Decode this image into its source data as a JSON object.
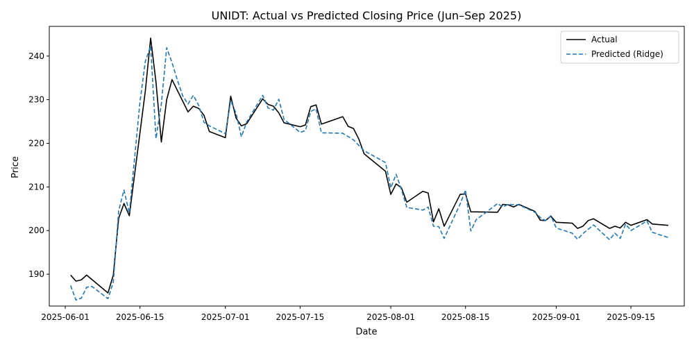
{
  "chart_data": {
    "type": "line",
    "title": "UNIDT: Actual vs Predicted Closing Price (Jun–Sep 2025)",
    "xlabel": "Date",
    "ylabel": "Price",
    "xlim": [
      "2025-05-29",
      "2025-09-25"
    ],
    "ylim": [
      182.7,
      246.8
    ],
    "xticks": [
      "2025-06-01",
      "2025-06-15",
      "2025-07-01",
      "2025-07-15",
      "2025-08-01",
      "2025-08-15",
      "2025-09-01",
      "2025-09-15"
    ],
    "yticks": [
      190,
      200,
      210,
      220,
      230,
      240
    ],
    "legend_position": "upper right",
    "grid": false,
    "series": [
      {
        "name": "Actual",
        "color": "#000000",
        "style": "solid",
        "points": [
          [
            "2025-06-02",
            189.8
          ],
          [
            "2025-06-03",
            188.4
          ],
          [
            "2025-06-04",
            188.7
          ],
          [
            "2025-06-05",
            189.8
          ],
          [
            "2025-06-09",
            185.7
          ],
          [
            "2025-06-10",
            189.8
          ],
          [
            "2025-06-11",
            202.8
          ],
          [
            "2025-06-12",
            206.2
          ],
          [
            "2025-06-13",
            203.4
          ],
          [
            "2025-06-16",
            232.0
          ],
          [
            "2025-06-17",
            244.1
          ],
          [
            "2025-06-18",
            234.0
          ],
          [
            "2025-06-19",
            220.3
          ],
          [
            "2025-06-20",
            230.0
          ],
          [
            "2025-06-21",
            234.6
          ],
          [
            "2025-06-24",
            227.2
          ],
          [
            "2025-06-25",
            228.5
          ],
          [
            "2025-06-26",
            228.0
          ],
          [
            "2025-06-27",
            226.4
          ],
          [
            "2025-06-28",
            222.7
          ],
          [
            "2025-07-01",
            221.3
          ],
          [
            "2025-07-02",
            230.8
          ],
          [
            "2025-07-03",
            225.8
          ],
          [
            "2025-07-04",
            224.0
          ],
          [
            "2025-07-05",
            224.5
          ],
          [
            "2025-07-08",
            230.2
          ],
          [
            "2025-07-09",
            228.9
          ],
          [
            "2025-07-10",
            228.5
          ],
          [
            "2025-07-11",
            227.0
          ],
          [
            "2025-07-12",
            224.7
          ],
          [
            "2025-07-15",
            223.8
          ],
          [
            "2025-07-16",
            224.2
          ],
          [
            "2025-07-17",
            228.4
          ],
          [
            "2025-07-18",
            228.8
          ],
          [
            "2025-07-19",
            224.4
          ],
          [
            "2025-07-23",
            226.1
          ],
          [
            "2025-07-24",
            223.9
          ],
          [
            "2025-07-25",
            223.4
          ],
          [
            "2025-07-26",
            221.0
          ],
          [
            "2025-07-27",
            217.6
          ],
          [
            "2025-07-31",
            213.6
          ],
          [
            "2025-08-01",
            208.3
          ],
          [
            "2025-08-02",
            210.7
          ],
          [
            "2025-08-03",
            209.8
          ],
          [
            "2025-08-04",
            206.5
          ],
          [
            "2025-08-07",
            209.0
          ],
          [
            "2025-08-08",
            208.6
          ],
          [
            "2025-08-09",
            202.0
          ],
          [
            "2025-08-10",
            205.0
          ],
          [
            "2025-08-11",
            201.0
          ],
          [
            "2025-08-14",
            208.3
          ],
          [
            "2025-08-15",
            208.4
          ],
          [
            "2025-08-16",
            204.3
          ],
          [
            "2025-08-21",
            204.2
          ],
          [
            "2025-08-22",
            206.0
          ],
          [
            "2025-08-23",
            205.9
          ],
          [
            "2025-08-24",
            205.4
          ],
          [
            "2025-08-25",
            206.0
          ],
          [
            "2025-08-28",
            204.4
          ],
          [
            "2025-08-29",
            202.4
          ],
          [
            "2025-08-30",
            202.3
          ],
          [
            "2025-08-31",
            203.3
          ],
          [
            "2025-09-01",
            201.9
          ],
          [
            "2025-09-04",
            201.7
          ],
          [
            "2025-09-05",
            200.5
          ],
          [
            "2025-09-06",
            201.0
          ],
          [
            "2025-09-07",
            202.3
          ],
          [
            "2025-09-08",
            202.7
          ],
          [
            "2025-09-11",
            200.5
          ],
          [
            "2025-09-12",
            201.0
          ],
          [
            "2025-09-13",
            200.6
          ],
          [
            "2025-09-14",
            201.9
          ],
          [
            "2025-09-15",
            201.2
          ],
          [
            "2025-09-18",
            202.5
          ],
          [
            "2025-09-19",
            201.5
          ],
          [
            "2025-09-22",
            201.2
          ]
        ]
      },
      {
        "name": "Predicted (Ridge)",
        "color": "#1f77b4",
        "style": "dashed",
        "points": [
          [
            "2025-06-02",
            187.4
          ],
          [
            "2025-06-03",
            184.1
          ],
          [
            "2025-06-04",
            184.5
          ],
          [
            "2025-06-05",
            187.0
          ],
          [
            "2025-06-06",
            187.2
          ],
          [
            "2025-06-09",
            184.4
          ],
          [
            "2025-06-10",
            188.2
          ],
          [
            "2025-06-11",
            204.5
          ],
          [
            "2025-06-12",
            209.3
          ],
          [
            "2025-06-13",
            204.0
          ],
          [
            "2025-06-14",
            216.8
          ],
          [
            "2025-06-15",
            229.5
          ],
          [
            "2025-06-16",
            238.8
          ],
          [
            "2025-06-17",
            242.3
          ],
          [
            "2025-06-18",
            221.1
          ],
          [
            "2025-06-19",
            229.0
          ],
          [
            "2025-06-20",
            241.9
          ],
          [
            "2025-06-21",
            238.5
          ],
          [
            "2025-06-22",
            234.5
          ],
          [
            "2025-06-23",
            230.9
          ],
          [
            "2025-06-24",
            229.0
          ],
          [
            "2025-06-25",
            231.0
          ],
          [
            "2025-06-26",
            228.7
          ],
          [
            "2025-06-27",
            224.8
          ],
          [
            "2025-06-28",
            224.0
          ],
          [
            "2025-07-01",
            222.2
          ],
          [
            "2025-07-02",
            229.8
          ],
          [
            "2025-07-03",
            226.9
          ],
          [
            "2025-07-04",
            221.5
          ],
          [
            "2025-07-05",
            224.9
          ],
          [
            "2025-07-08",
            231.0
          ],
          [
            "2025-07-09",
            228.1
          ],
          [
            "2025-07-10",
            227.6
          ],
          [
            "2025-07-11",
            230.1
          ],
          [
            "2025-07-12",
            225.5
          ],
          [
            "2025-07-15",
            222.5
          ],
          [
            "2025-07-16",
            222.9
          ],
          [
            "2025-07-17",
            227.3
          ],
          [
            "2025-07-18",
            227.9
          ],
          [
            "2025-07-19",
            222.4
          ],
          [
            "2025-07-23",
            222.3
          ],
          [
            "2025-07-25",
            220.8
          ],
          [
            "2025-07-27",
            218.3
          ],
          [
            "2025-07-31",
            215.6
          ],
          [
            "2025-08-01",
            209.8
          ],
          [
            "2025-08-02",
            212.9
          ],
          [
            "2025-08-03",
            209.4
          ],
          [
            "2025-08-04",
            205.3
          ],
          [
            "2025-08-07",
            204.7
          ],
          [
            "2025-08-08",
            205.4
          ],
          [
            "2025-08-09",
            201.0
          ],
          [
            "2025-08-10",
            200.9
          ],
          [
            "2025-08-11",
            198.2
          ],
          [
            "2025-08-14",
            206.1
          ],
          [
            "2025-08-15",
            209.3
          ],
          [
            "2025-08-16",
            199.9
          ],
          [
            "2025-08-17",
            202.5
          ],
          [
            "2025-08-19",
            204.3
          ],
          [
            "2025-08-21",
            206.2
          ],
          [
            "2025-08-22",
            205.4
          ],
          [
            "2025-08-23",
            206.0
          ],
          [
            "2025-08-25",
            205.9
          ],
          [
            "2025-08-28",
            204.2
          ],
          [
            "2025-08-29",
            203.0
          ],
          [
            "2025-08-30",
            202.3
          ],
          [
            "2025-08-31",
            203.4
          ],
          [
            "2025-09-01",
            200.6
          ],
          [
            "2025-09-04",
            199.4
          ],
          [
            "2025-09-05",
            198.0
          ],
          [
            "2025-09-06",
            199.3
          ],
          [
            "2025-09-08",
            201.3
          ],
          [
            "2025-09-11",
            197.9
          ],
          [
            "2025-09-12",
            199.4
          ],
          [
            "2025-09-13",
            198.2
          ],
          [
            "2025-09-14",
            201.5
          ],
          [
            "2025-09-15",
            200.0
          ],
          [
            "2025-09-18",
            202.2
          ],
          [
            "2025-09-19",
            199.6
          ],
          [
            "2025-09-22",
            198.4
          ]
        ]
      }
    ]
  }
}
